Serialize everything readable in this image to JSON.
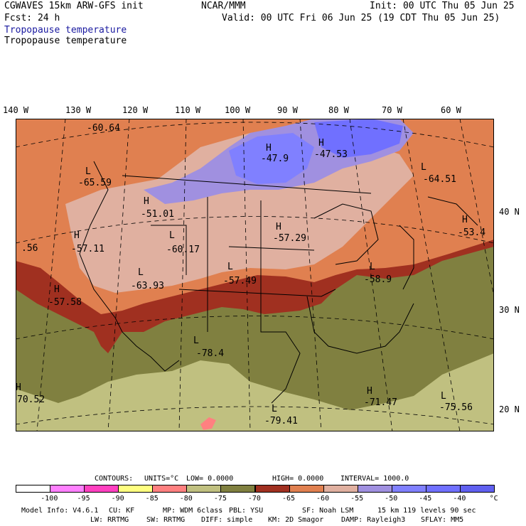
{
  "header": {
    "model_title": "CGWAVES 15km ARW-GFS init",
    "org": "NCAR/MMM",
    "init_line": "Init: 00 UTC Thu 05 Jun 25",
    "fcst_line": "Fcst:   24 h",
    "valid_line": "Valid: 00 UTC Fri 06 Jun 25 (19 CDT Thu 05 Jun 25)",
    "field_title_blue": "Tropopause temperature",
    "field_title_black": "Tropopause temperature"
  },
  "longitude_labels": [
    "140 W",
    "130 W",
    "120 W",
    "110 W",
    "100 W",
    "90 W",
    "80 W",
    "70 W",
    "60 W"
  ],
  "latitude_labels": [
    "40 N",
    "30 N",
    "20 N"
  ],
  "map_labels": [
    {
      "marker": "",
      "value": "-60.64"
    },
    {
      "marker": "H",
      "value": "-47.9"
    },
    {
      "marker": "H",
      "value": "-47.53"
    },
    {
      "marker": "L",
      "value": "-65.59"
    },
    {
      "marker": "L",
      "value": "-64.51"
    },
    {
      "marker": "H",
      "value": "-51.01"
    },
    {
      "marker": "H",
      "value": "-53.4"
    },
    {
      "marker": "",
      "value": ".56"
    },
    {
      "marker": "H",
      "value": "-57.11"
    },
    {
      "marker": "L",
      "value": "-60.17"
    },
    {
      "marker": "H",
      "value": "-57.29"
    },
    {
      "marker": "L",
      "value": "-63.93"
    },
    {
      "marker": "L",
      "value": "-57.49"
    },
    {
      "marker": "L",
      "value": "-58.9"
    },
    {
      "marker": "H",
      "value": "-57.58"
    },
    {
      "marker": "L",
      "value": "-78.4"
    },
    {
      "marker": "H",
      "value": "70.52"
    },
    {
      "marker": "H",
      "value": "-71.47"
    },
    {
      "marker": "L",
      "value": "-75.56"
    },
    {
      "marker": "L",
      "value": "-79.41"
    }
  ],
  "contour_info": {
    "contours": "CONTOURS:",
    "units": "UNITS=°C",
    "low": "LOW=  0.0000",
    "high": "HIGH=  0.0000",
    "interval": "INTERVAL=   1000.0"
  },
  "colorbar": {
    "colors": [
      "#ffffff",
      "#ff80ff",
      "#ff40c0",
      "#ffff80",
      "#ff8080",
      "#c0c080",
      "#808040",
      "#a03020",
      "#e08050",
      "#e0b0a0",
      "#a090e0",
      "#8080ff",
      "#7070ff",
      "#6060f0"
    ],
    "labels": [
      "-100",
      "-95",
      "-90",
      "-85",
      "-80",
      "-75",
      "-70",
      "-65",
      "-60",
      "-55",
      "-50",
      "-45",
      "-40",
      "°C"
    ]
  },
  "footer": {
    "line1_a": "Model Info: V4.6.1",
    "line1_b": "CU: KF",
    "line1_c": "MP: WDM 6class",
    "line1_d": "PBL: YSU",
    "line1_e": "SF: Noah LSM",
    "line1_f": "15 km   119 levels   90 sec",
    "line2_a": "LW: RRTMG",
    "line2_b": "SW: RRTMG",
    "line2_c": "DIFF: simple",
    "line2_d": "KM: 2D Smagor",
    "line2_e": "DAMP: Rayleigh3",
    "line2_f": "SFLAY: MM5"
  }
}
